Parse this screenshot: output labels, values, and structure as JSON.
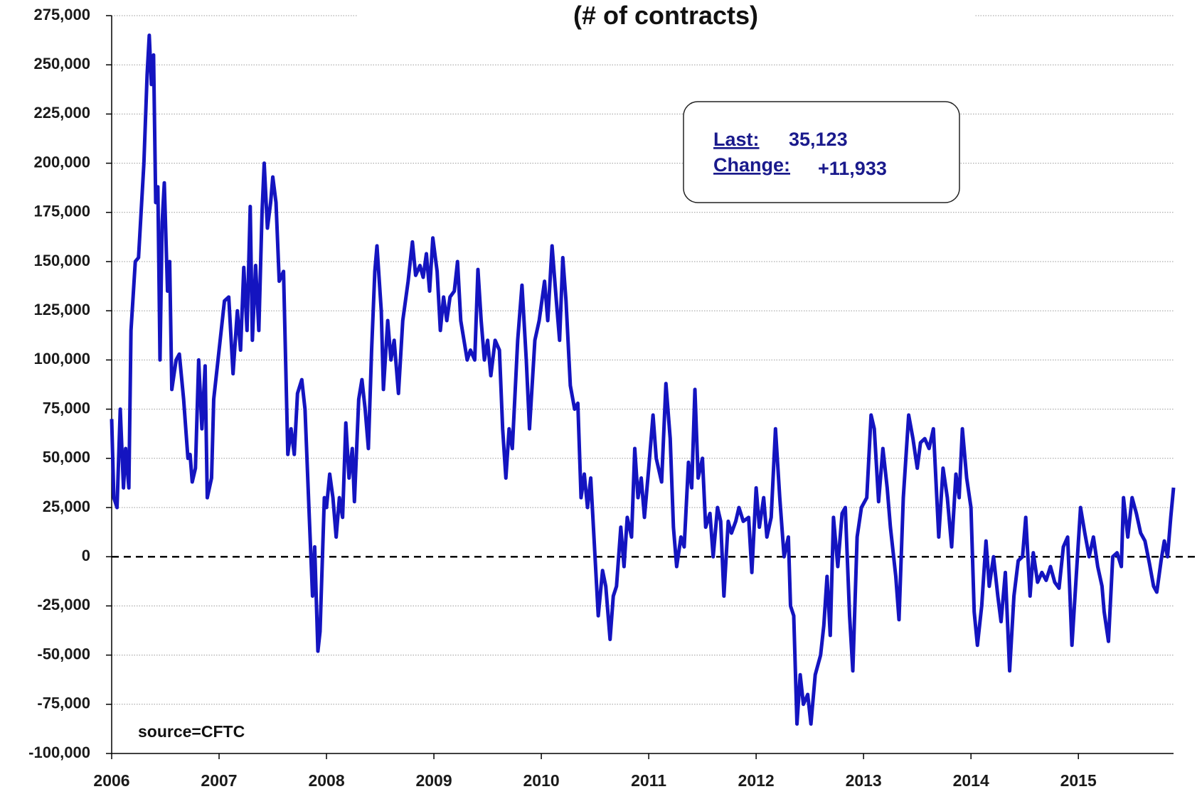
{
  "chart_data": {
    "type": "line",
    "title": "(# of contracts)",
    "source": "source=CFTC",
    "annotation": {
      "last_label": "Last:",
      "last_value": "35,123",
      "change_label": "Change:",
      "change_value": "+11,933"
    },
    "color": "#1414c0",
    "grid": true,
    "zero_line": true,
    "xlim": [
      2006,
      2015.886
    ],
    "xticks": [
      2006,
      2007,
      2008,
      2009,
      2010,
      2011,
      2012,
      2013,
      2014,
      2015
    ],
    "ylim": [
      -100000,
      275000
    ],
    "yticks": [
      {
        "value": -100000,
        "label": "-100,000"
      },
      {
        "value": -75000,
        "label": "-75,000"
      },
      {
        "value": -50000,
        "label": "-50,000"
      },
      {
        "value": -25000,
        "label": "-25,000"
      },
      0,
      {
        "value": 25000,
        "label": "25,000"
      },
      {
        "value": 50000,
        "label": "50,000"
      },
      {
        "value": 75000,
        "label": "75,000"
      },
      {
        "value": 100000,
        "label": "100,000"
      },
      {
        "value": 125000,
        "label": "125,000"
      },
      {
        "value": 150000,
        "label": "150,000"
      },
      {
        "value": 175000,
        "label": "175,000"
      },
      {
        "value": 200000,
        "label": "200,000"
      },
      {
        "value": 225000,
        "label": "225,000"
      },
      {
        "value": 250000,
        "label": "250,000"
      },
      {
        "value": 275000,
        "label": "275,000"
      }
    ],
    "x": [
      2006.0,
      2006.02,
      2006.05,
      2006.08,
      2006.11,
      2006.13,
      2006.16,
      2006.18,
      2006.22,
      2006.25,
      2006.3,
      2006.33,
      2006.35,
      2006.37,
      2006.39,
      2006.41,
      2006.43,
      2006.45,
      2006.47,
      2006.49,
      2006.52,
      2006.54,
      2006.56,
      2006.6,
      2006.63,
      2006.67,
      2006.71,
      2006.73,
      2006.75,
      2006.78,
      2006.81,
      2006.84,
      2006.87,
      2006.89,
      2006.93,
      2006.95,
      2006.99,
      2007.05,
      2007.09,
      2007.13,
      2007.17,
      2007.2,
      2007.23,
      2007.26,
      2007.29,
      2007.31,
      2007.34,
      2007.37,
      2007.4,
      2007.42,
      2007.45,
      2007.48,
      2007.5,
      2007.53,
      2007.56,
      2007.6,
      2007.64,
      2007.67,
      2007.7,
      2007.73,
      2007.77,
      2007.8,
      2007.84,
      2007.87,
      2007.89,
      2007.92,
      2007.94,
      2007.98,
      2008.0,
      2008.03,
      2008.06,
      2008.09,
      2008.12,
      2008.15,
      2008.18,
      2008.21,
      2008.24,
      2008.26,
      2008.3,
      2008.33,
      2008.36,
      2008.39,
      2008.42,
      2008.45,
      2008.47,
      2008.51,
      2008.53,
      2008.57,
      2008.6,
      2008.63,
      2008.67,
      2008.71,
      2008.76,
      2008.8,
      2008.83,
      2008.87,
      2008.9,
      2008.93,
      2008.96,
      2008.99,
      2009.03,
      2009.06,
      2009.09,
      2009.12,
      2009.15,
      2009.19,
      2009.22,
      2009.25,
      2009.28,
      2009.31,
      2009.34,
      2009.38,
      2009.41,
      2009.44,
      2009.47,
      2009.5,
      2009.53,
      2009.57,
      2009.61,
      2009.64,
      2009.67,
      2009.7,
      2009.73,
      2009.78,
      2009.82,
      2009.86,
      2009.89,
      2009.94,
      2009.98,
      2010.03,
      2010.06,
      2010.1,
      2010.14,
      2010.17,
      2010.2,
      2010.23,
      2010.27,
      2010.31,
      2010.34,
      2010.37,
      2010.4,
      2010.43,
      2010.46,
      2010.5,
      2010.53,
      2010.57,
      2010.6,
      2010.64,
      2010.67,
      2010.7,
      2010.74,
      2010.77,
      2010.8,
      2010.84,
      2010.87,
      2010.9,
      2010.93,
      2010.96,
      2011.0,
      2011.04,
      2011.07,
      2011.12,
      2011.16,
      2011.2,
      2011.23,
      2011.26,
      2011.3,
      2011.33,
      2011.37,
      2011.4,
      2011.43,
      2011.46,
      2011.5,
      2011.53,
      2011.57,
      2011.6,
      2011.64,
      2011.67,
      2011.7,
      2011.74,
      2011.77,
      2011.81,
      2011.84,
      2011.88,
      2011.93,
      2011.96,
      2012.0,
      2012.03,
      2012.07,
      2012.1,
      2012.14,
      2012.18,
      2012.22,
      2012.26,
      2012.3,
      2012.32,
      2012.35,
      2012.38,
      2012.41,
      2012.44,
      2012.48,
      2012.51,
      2012.55,
      2012.6,
      2012.63,
      2012.66,
      2012.69,
      2012.72,
      2012.76,
      2012.8,
      2012.83,
      2012.87,
      2012.9,
      2012.94,
      2012.98,
      2013.03,
      2013.07,
      2013.1,
      2013.14,
      2013.18,
      2013.22,
      2013.25,
      2013.3,
      2013.33,
      2013.37,
      2013.42,
      2013.46,
      2013.5,
      2013.53,
      2013.57,
      2013.61,
      2013.65,
      2013.7,
      2013.74,
      2013.78,
      2013.82,
      2013.86,
      2013.89,
      2013.92,
      2013.96,
      2014.0,
      2014.03,
      2014.06,
      2014.1,
      2014.14,
      2014.17,
      2014.21,
      2014.25,
      2014.28,
      2014.32,
      2014.36,
      2014.4,
      2014.44,
      2014.48,
      2014.51,
      2014.55,
      2014.58,
      2014.62,
      2014.66,
      2014.7,
      2014.74,
      2014.78,
      2014.82,
      2014.86,
      2014.9,
      2014.94,
      2014.98,
      2015.02,
      2015.06,
      2015.1,
      2015.14,
      2015.18,
      2015.22,
      2015.24,
      2015.28,
      2015.32,
      2015.36,
      2015.4,
      2015.42,
      2015.46,
      2015.5,
      2015.54,
      2015.58,
      2015.62,
      2015.66,
      2015.7,
      2015.73,
      2015.77,
      2015.8,
      2015.83,
      2015.86,
      2015.886
    ],
    "values": [
      70000,
      30000,
      25000,
      75000,
      35000,
      55000,
      35000,
      115000,
      150000,
      152000,
      200000,
      245000,
      265000,
      240000,
      255000,
      180000,
      188000,
      100000,
      170000,
      190000,
      135000,
      150000,
      85000,
      100000,
      103000,
      80000,
      50000,
      52000,
      38000,
      45000,
      100000,
      65000,
      97000,
      30000,
      40000,
      80000,
      100000,
      130000,
      132000,
      93000,
      125000,
      105000,
      147000,
      115000,
      178000,
      110000,
      148000,
      115000,
      175000,
      200000,
      167000,
      180000,
      193000,
      180000,
      140000,
      145000,
      52000,
      65000,
      52000,
      83000,
      90000,
      75000,
      20000,
      -20000,
      5000,
      -48000,
      -38000,
      30000,
      25000,
      42000,
      30000,
      10000,
      30000,
      20000,
      68000,
      40000,
      55000,
      28000,
      80000,
      90000,
      75000,
      55000,
      105000,
      145000,
      158000,
      125000,
      85000,
      120000,
      100000,
      110000,
      83000,
      120000,
      140000,
      160000,
      143000,
      148000,
      142000,
      154000,
      135000,
      162000,
      145000,
      115000,
      132000,
      120000,
      132000,
      135000,
      150000,
      120000,
      110000,
      100000,
      105000,
      100000,
      146000,
      120000,
      100000,
      110000,
      92000,
      110000,
      105000,
      65000,
      40000,
      65000,
      55000,
      110000,
      138000,
      100000,
      65000,
      110000,
      120000,
      140000,
      120000,
      158000,
      130000,
      110000,
      152000,
      130000,
      87000,
      75000,
      78000,
      30000,
      42000,
      25000,
      40000,
      0,
      -30000,
      -7000,
      -15000,
      -42000,
      -20000,
      -15000,
      15000,
      -5000,
      20000,
      10000,
      55000,
      30000,
      40000,
      20000,
      45000,
      72000,
      50000,
      38000,
      88000,
      60000,
      15000,
      -5000,
      10000,
      5000,
      48000,
      35000,
      85000,
      40000,
      50000,
      15000,
      22000,
      0,
      25000,
      18000,
      -20000,
      18000,
      12000,
      18000,
      25000,
      18000,
      20000,
      -8000,
      35000,
      15000,
      30000,
      10000,
      20000,
      65000,
      30000,
      0,
      10000,
      -25000,
      -30000,
      -85000,
      -60000,
      -75000,
      -70000,
      -85000,
      -60000,
      -50000,
      -35000,
      -10000,
      -40000,
      20000,
      -5000,
      22000,
      25000,
      -30000,
      -58000,
      10000,
      25000,
      30000,
      72000,
      65000,
      28000,
      55000,
      35000,
      15000,
      -10000,
      -32000,
      30000,
      72000,
      60000,
      45000,
      58000,
      60000,
      55000,
      65000,
      10000,
      45000,
      30000,
      5000,
      42000,
      30000,
      65000,
      40000,
      25000,
      -28000,
      -45000,
      -25000,
      8000,
      -15000,
      0,
      -20000,
      -33000,
      -8000,
      -58000,
      -20000,
      -2000,
      0,
      20000,
      -20000,
      2000,
      -13000,
      -8000,
      -12000,
      -5000,
      -13000,
      -16000,
      5000,
      10000,
      -45000,
      -10000,
      25000,
      12000,
      0,
      10000,
      -5000,
      -15000,
      -28000,
      -43000,
      0,
      2000,
      -5000,
      30000,
      10000,
      30000,
      22000,
      12000,
      8000,
      -3000,
      -15000,
      -18000,
      -2000,
      8000,
      0,
      20000,
      35123
    ]
  }
}
